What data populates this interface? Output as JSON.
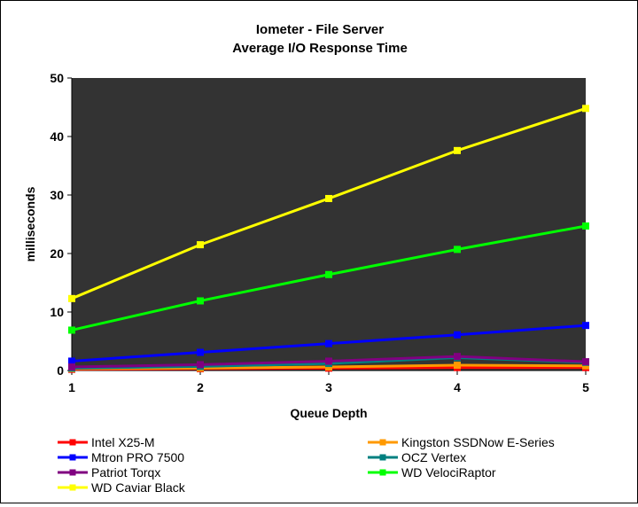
{
  "chart_data": {
    "type": "line",
    "title": "Iometer - File Server",
    "subtitle": "Average I/O Response Time",
    "xlabel": "Queue Depth",
    "ylabel": "milliseconds",
    "x": [
      1,
      2,
      3,
      4,
      5
    ],
    "ylim": [
      0,
      50
    ],
    "yticks": [
      0,
      10,
      20,
      30,
      40,
      50
    ],
    "grid": false,
    "plot_background": "#333333",
    "legend_position": "bottom",
    "series": [
      {
        "name": "Intel X25-M",
        "color": "#ff0000",
        "marker": "square",
        "values": [
          0.2,
          0.3,
          0.4,
          0.5,
          0.5
        ]
      },
      {
        "name": "Kingston SSDNow E-Series",
        "color": "#ff9900",
        "marker": "square",
        "values": [
          0.3,
          0.4,
          0.6,
          0.9,
          0.8
        ]
      },
      {
        "name": "Mtron PRO 7500",
        "color": "#0000ff",
        "marker": "square",
        "values": [
          1.6,
          3.1,
          4.6,
          6.1,
          7.7
        ]
      },
      {
        "name": "OCZ Vertex",
        "color": "#008080",
        "marker": "square",
        "values": [
          0.4,
          0.7,
          1.2,
          2.2,
          1.4
        ]
      },
      {
        "name": "Patriot Torqx",
        "color": "#800080",
        "marker": "square",
        "values": [
          0.6,
          1.0,
          1.6,
          2.4,
          1.5
        ]
      },
      {
        "name": "WD VelociRaptor",
        "color": "#00ff00",
        "marker": "square",
        "values": [
          6.9,
          11.9,
          16.4,
          20.7,
          24.7
        ]
      },
      {
        "name": "WD Caviar Black",
        "color": "#ffff00",
        "marker": "square",
        "values": [
          12.3,
          21.5,
          29.4,
          37.6,
          44.8
        ]
      }
    ]
  }
}
